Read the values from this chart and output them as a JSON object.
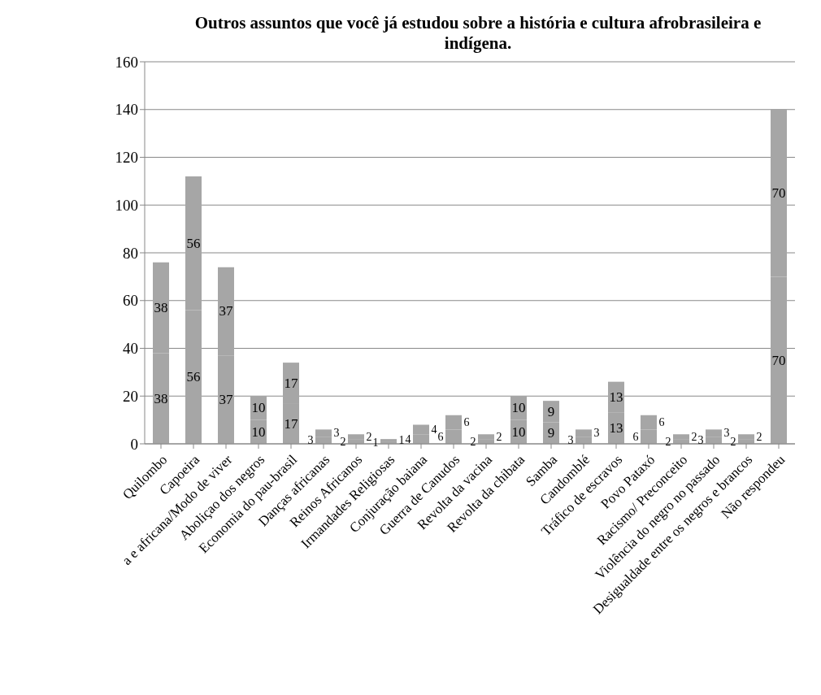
{
  "chart_data": {
    "type": "bar",
    "title": "Outros assuntos que você já estudou sobre a história e cultura afrobrasileira  e indígena.",
    "categories": [
      "Quilombo",
      "Capoeira",
      "a e africana/Modo de viver",
      "Aboliçao dos negros",
      "Economia do pau-brasil",
      "Danças africanas",
      "Reinos Africanos",
      "Irmandades Religiosas",
      "Conjuração baiana",
      "Guerra de Canudos",
      "Revolta da vacina",
      "Revolta da chibata",
      "Samba",
      "Candomblé",
      "Tráfico de escravos",
      "Povo Pataxó",
      "Racismo/ Preconceito",
      "Violência do negro no passado",
      "Desigualdade entre os negros e brancos",
      "Não respondeu"
    ],
    "series": [
      {
        "color": "#a6a6a6",
        "values": [
          38,
          56,
          37,
          10,
          17,
          3,
          2,
          1,
          4,
          6,
          2,
          10,
          9,
          3,
          13,
          6,
          2,
          3,
          2,
          70
        ]
      },
      {
        "color": "#a6a6a6",
        "values": [
          38,
          56,
          37,
          10,
          17,
          3,
          2,
          1,
          4,
          6,
          2,
          10,
          9,
          3,
          13,
          6,
          2,
          3,
          2,
          70
        ]
      }
    ],
    "stacked": true,
    "data_labels": true,
    "ylim": [
      0,
      160
    ],
    "yticks": [
      0,
      20,
      40,
      60,
      80,
      100,
      120,
      140,
      160
    ],
    "grid": "y"
  }
}
